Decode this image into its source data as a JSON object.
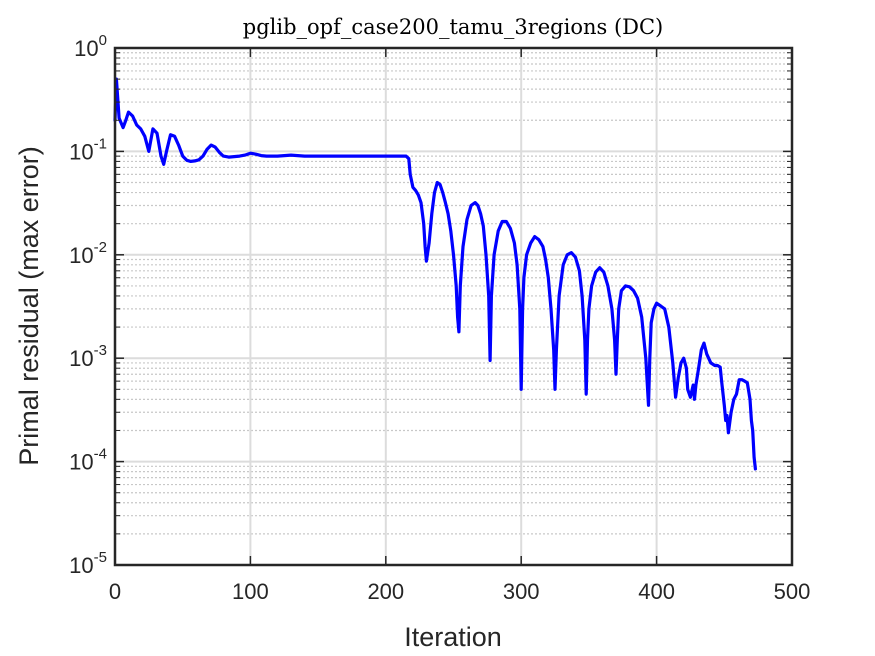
{
  "chart_data": {
    "type": "line",
    "title": "pglib_opf_case200_tamu_3regions (DC)",
    "xlabel": "Iteration",
    "ylabel": "Primal residual (max error)",
    "xlim": [
      0,
      500
    ],
    "ylim": [
      1e-05,
      1
    ],
    "y_scale": "log",
    "grid": true,
    "minor_grid": true,
    "box": true,
    "x_ticks": [
      {
        "value": 0,
        "label": "0"
      },
      {
        "value": 100,
        "label": "100"
      },
      {
        "value": 200,
        "label": "200"
      },
      {
        "value": 300,
        "label": "300"
      },
      {
        "value": 400,
        "label": "400"
      },
      {
        "value": 500,
        "label": "500"
      }
    ],
    "y_ticks": [
      {
        "value": 1e-05,
        "base": "10",
        "exp": "-5"
      },
      {
        "value": 0.0001,
        "base": "10",
        "exp": "-4"
      },
      {
        "value": 0.001,
        "base": "10",
        "exp": "-3"
      },
      {
        "value": 0.01,
        "base": "10",
        "exp": "-2"
      },
      {
        "value": 0.1,
        "base": "10",
        "exp": "-1"
      },
      {
        "value": 1,
        "base": "10",
        "exp": "0"
      }
    ],
    "series": [
      {
        "color": "#0000ff",
        "x": [
          0,
          1,
          3,
          6,
          8,
          10,
          13,
          16,
          19,
          22,
          25,
          28,
          31,
          34,
          36,
          38,
          41,
          44,
          47,
          50,
          53,
          56,
          59,
          62,
          65,
          68,
          71,
          74,
          77,
          80,
          84,
          88,
          92,
          96,
          100,
          104,
          108,
          112,
          116,
          120,
          125,
          130,
          135,
          140,
          145,
          150,
          160,
          170,
          180,
          190,
          200,
          205,
          210,
          215,
          217,
          218,
          220,
          222,
          224,
          226,
          228,
          229,
          230,
          232,
          234,
          236,
          238,
          240,
          242,
          244,
          246,
          248,
          250,
          252,
          253,
          254,
          255,
          257,
          260,
          263,
          266,
          268,
          270,
          272,
          274,
          276,
          277,
          278,
          280,
          283,
          286,
          289,
          292,
          295,
          297,
          299,
          300,
          301,
          302,
          304,
          307,
          310,
          313,
          316,
          318,
          320,
          322,
          324,
          325,
          326,
          328,
          331,
          334,
          337,
          340,
          343,
          345,
          347,
          348,
          349,
          350,
          352,
          355,
          358,
          361,
          364,
          367,
          369,
          370,
          371,
          372,
          374,
          377,
          380,
          383,
          386,
          389,
          392,
          394,
          395,
          396,
          398,
          400,
          403,
          406,
          409,
          412,
          414,
          416,
          418,
          420,
          422,
          423,
          425,
          427,
          428,
          429,
          431,
          433,
          435,
          437,
          440,
          443,
          445,
          447,
          448,
          450,
          451,
          452,
          453,
          455,
          457,
          459,
          461,
          463,
          465,
          467,
          469,
          470,
          471,
          472,
          473
        ],
        "y": [
          0.2,
          0.5,
          0.21,
          0.17,
          0.2,
          0.24,
          0.22,
          0.18,
          0.165,
          0.14,
          0.1,
          0.165,
          0.15,
          0.09,
          0.075,
          0.1,
          0.145,
          0.14,
          0.115,
          0.09,
          0.082,
          0.08,
          0.081,
          0.083,
          0.09,
          0.105,
          0.115,
          0.11,
          0.098,
          0.09,
          0.088,
          0.089,
          0.09,
          0.092,
          0.096,
          0.094,
          0.091,
          0.09,
          0.09,
          0.09,
          0.091,
          0.092,
          0.091,
          0.09,
          0.09,
          0.09,
          0.09,
          0.09,
          0.09,
          0.09,
          0.09,
          0.09,
          0.09,
          0.09,
          0.085,
          0.06,
          0.045,
          0.042,
          0.038,
          0.032,
          0.02,
          0.012,
          0.0087,
          0.013,
          0.025,
          0.04,
          0.05,
          0.048,
          0.04,
          0.032,
          0.025,
          0.017,
          0.01,
          0.005,
          0.0025,
          0.0018,
          0.005,
          0.012,
          0.022,
          0.03,
          0.032,
          0.03,
          0.025,
          0.019,
          0.01,
          0.004,
          0.00095,
          0.004,
          0.01,
          0.017,
          0.021,
          0.021,
          0.018,
          0.013,
          0.008,
          0.003,
          0.0005,
          0.003,
          0.006,
          0.01,
          0.013,
          0.015,
          0.014,
          0.012,
          0.009,
          0.006,
          0.003,
          0.0012,
          0.0005,
          0.0012,
          0.004,
          0.008,
          0.01,
          0.0105,
          0.0095,
          0.007,
          0.004,
          0.0015,
          0.00045,
          0.0015,
          0.003,
          0.005,
          0.0068,
          0.0075,
          0.0068,
          0.005,
          0.003,
          0.0015,
          0.0007,
          0.0015,
          0.003,
          0.0045,
          0.005,
          0.0049,
          0.0045,
          0.0038,
          0.0025,
          0.001,
          0.00035,
          0.001,
          0.0022,
          0.003,
          0.0034,
          0.0032,
          0.003,
          0.002,
          0.0009,
          0.00042,
          0.00065,
          0.0009,
          0.001,
          0.0008,
          0.0005,
          0.00042,
          0.00055,
          0.0004,
          0.00055,
          0.0008,
          0.0012,
          0.0014,
          0.0011,
          0.0009,
          0.00085,
          0.00085,
          0.00082,
          0.0006,
          0.00035,
          0.00025,
          0.00028,
          0.00019,
          0.0003,
          0.0004,
          0.00045,
          0.00062,
          0.00062,
          0.0006,
          0.00058,
          0.0004,
          0.00025,
          0.0002,
          0.00011,
          8.5e-05
        ]
      }
    ]
  }
}
